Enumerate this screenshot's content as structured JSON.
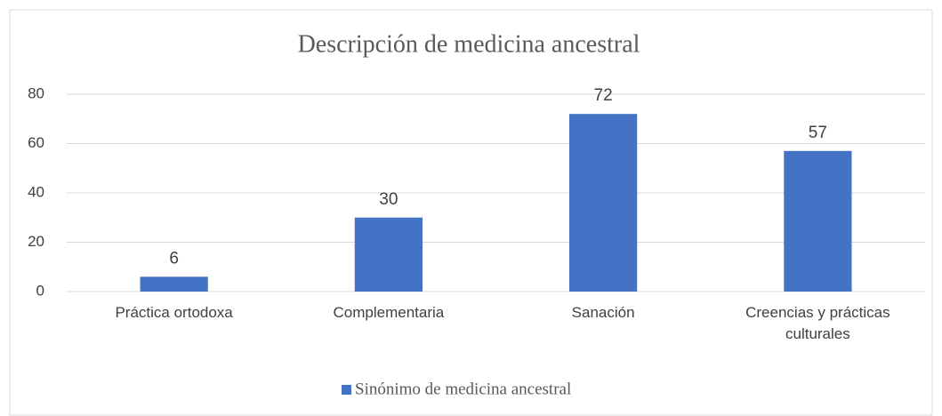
{
  "chart_data": {
    "type": "bar",
    "title": "Descripción de medicina ancestral",
    "categories": [
      "Práctica ortodoxa",
      "Complementaria",
      "Sanación",
      "Creencias y prácticas culturales"
    ],
    "series": [
      {
        "name": "Sinónimo de medicina ancestral",
        "color": "#4472c4",
        "values": [
          6,
          30,
          72,
          57
        ]
      }
    ],
    "ylim": [
      0,
      80
    ],
    "yticks": [
      0,
      20,
      40,
      60,
      80
    ],
    "grid": true,
    "legend": "bottom"
  }
}
